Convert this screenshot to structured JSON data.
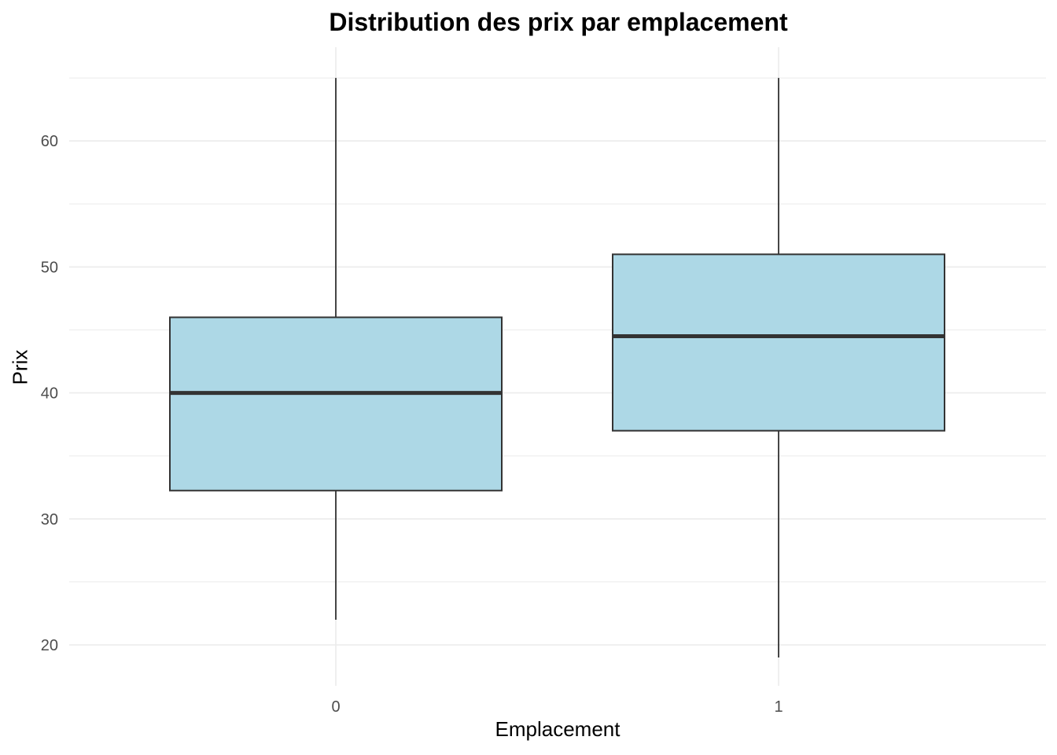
{
  "chart_data": {
    "type": "boxplot",
    "title": "Distribution des prix par emplacement",
    "xlabel": "Emplacement",
    "ylabel": "Prix",
    "categories": [
      "0",
      "1"
    ],
    "y_ticks": [
      20,
      30,
      40,
      50,
      60
    ],
    "ylim": [
      17,
      65
    ],
    "grid": true,
    "boxes": [
      {
        "category": "0",
        "min": 22,
        "q1": 32.25,
        "median": 40,
        "q3": 46,
        "max": 65
      },
      {
        "category": "1",
        "min": 19,
        "q1": 37,
        "median": 44.5,
        "q3": 51,
        "max": 65
      }
    ],
    "colors": {
      "box_fill": "#add8e6",
      "box_stroke": "#333333",
      "grid": "#ebebeb",
      "tick_text": "#4d4d4d"
    }
  }
}
